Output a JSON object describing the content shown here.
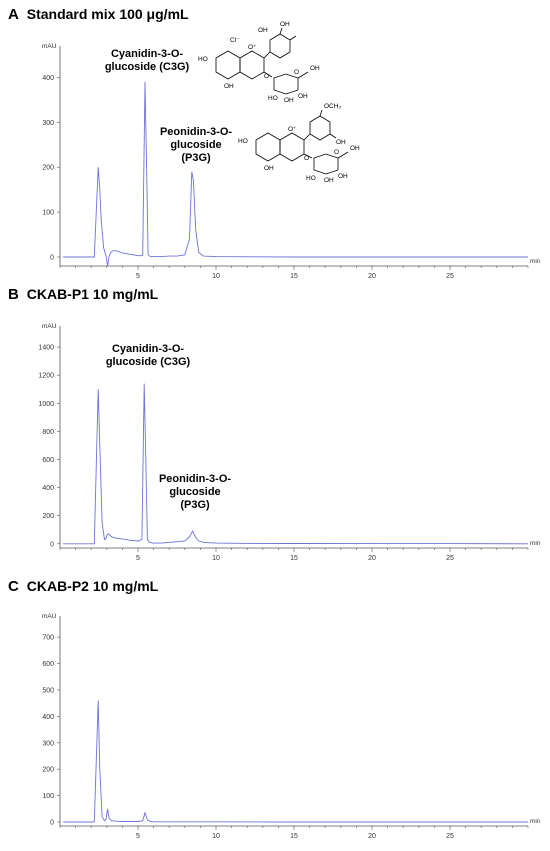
{
  "panels": [
    {
      "letter": "A",
      "title": "Standard mix 100 μg/mL",
      "y_unit": "mAU",
      "x_unit": "min",
      "annotations": [
        {
          "text": "Cyanidin-3-O-\nglucoside (C3G)"
        },
        {
          "text": "Peonidin-3-O-\nglucoside\n(P3G)"
        }
      ],
      "structure_labels": {
        "c3g": [
          "Cl⁻",
          "HO",
          "O⁺",
          "OH",
          "OH",
          "OH",
          "O",
          "O",
          "OH",
          "HO",
          "OH",
          "OH"
        ],
        "p3g": [
          "OCH₃",
          "HO",
          "O⁺",
          "OH",
          "OH",
          "O",
          "O",
          "OH",
          "HO",
          "OH",
          "OH"
        ]
      }
    },
    {
      "letter": "B",
      "title": "CKAB-P1 10 mg/mL",
      "y_unit": "mAU",
      "x_unit": "min",
      "annotations": [
        {
          "text": "Cyanidin-3-O-\nglucoside (C3G)"
        },
        {
          "text": "Peonidin-3-O-\nglucoside\n(P3G)"
        }
      ]
    },
    {
      "letter": "C",
      "title": "CKAB-P2 10 mg/mL",
      "y_unit": "mAU",
      "x_unit": "min",
      "annotations": []
    }
  ],
  "chart_data": [
    {
      "type": "line",
      "title": "Standard mix 100 μg/mL",
      "xlabel": "min",
      "ylabel": "mAU",
      "xlim": [
        0,
        30
      ],
      "ylim": [
        -20,
        470
      ],
      "xticks": [
        5,
        10,
        15,
        20,
        25
      ],
      "yticks": [
        0,
        100,
        200,
        300,
        400
      ],
      "grid": false,
      "series": [
        {
          "x": [
            0.2,
            1.5,
            2.2,
            2.45,
            2.55,
            2.65,
            2.8,
            2.95,
            3.05,
            3.15,
            3.25,
            3.4,
            3.6,
            4.0,
            4.5,
            5.0,
            5.3,
            5.45,
            5.55,
            5.65,
            5.8,
            6.0,
            6.5,
            7.0,
            7.5,
            8.0,
            8.3,
            8.45,
            8.55,
            8.7,
            8.9,
            9.2,
            10.0,
            15.0,
            20.0,
            25.0,
            30.0
          ],
          "y": [
            0,
            0,
            0,
            200,
            150,
            80,
            20,
            2,
            -20,
            2,
            10,
            14,
            14,
            9,
            6,
            3,
            3,
            390,
            200,
            5,
            1,
            1,
            1,
            2,
            2,
            5,
            40,
            190,
            170,
            60,
            10,
            2,
            1,
            0,
            0,
            0,
            0
          ]
        }
      ],
      "annotations": [
        {
          "label": "Cyanidin-3-O-glucoside (C3G)",
          "x": 5.5,
          "y": 390
        },
        {
          "label": "Peonidin-3-O-glucoside (P3G)",
          "x": 8.5,
          "y": 190
        }
      ]
    },
    {
      "type": "line",
      "title": "CKAB-P1 10 mg/mL",
      "xlabel": "min",
      "ylabel": "mAU",
      "xlim": [
        0,
        30
      ],
      "ylim": [
        -30,
        1550
      ],
      "xticks": [
        5,
        10,
        15,
        20,
        25
      ],
      "yticks": [
        0,
        200,
        400,
        600,
        800,
        1000,
        1200,
        1400
      ],
      "grid": false,
      "series": [
        {
          "x": [
            0.2,
            1.5,
            2.2,
            2.45,
            2.55,
            2.7,
            2.85,
            2.95,
            3.0,
            3.1,
            3.3,
            3.6,
            4.0,
            4.5,
            5.0,
            5.25,
            5.4,
            5.5,
            5.6,
            5.75,
            6.0,
            6.5,
            7.0,
            7.5,
            8.0,
            8.3,
            8.5,
            8.7,
            8.9,
            9.2,
            10.0,
            12.0,
            15.0,
            20.0,
            25.0,
            30.0
          ],
          "y": [
            0,
            0,
            0,
            1100,
            700,
            150,
            30,
            40,
            60,
            70,
            50,
            40,
            35,
            25,
            20,
            30,
            1140,
            600,
            30,
            10,
            5,
            5,
            10,
            15,
            20,
            50,
            90,
            45,
            20,
            10,
            5,
            3,
            2,
            1,
            1,
            0
          ]
        }
      ],
      "annotations": [
        {
          "label": "Cyanidin-3-O-glucoside (C3G)",
          "x": 5.4,
          "y": 1140
        },
        {
          "label": "Peonidin-3-O-glucoside (P3G)",
          "x": 8.5,
          "y": 90
        }
      ]
    },
    {
      "type": "line",
      "title": "CKAB-P2 10 mg/mL",
      "xlabel": "min",
      "ylabel": "mAU",
      "xlim": [
        0,
        30
      ],
      "ylim": [
        -15,
        780
      ],
      "xticks": [
        5,
        10,
        15,
        20,
        25
      ],
      "yticks": [
        0,
        100,
        200,
        300,
        400,
        500,
        600,
        700
      ],
      "grid": false,
      "series": [
        {
          "x": [
            0.2,
            1.5,
            2.2,
            2.45,
            2.55,
            2.7,
            2.85,
            2.95,
            3.05,
            3.15,
            3.3,
            3.6,
            4.0,
            5.0,
            5.3,
            5.45,
            5.6,
            5.8,
            6.0,
            8.0,
            10.0,
            15.0,
            20.0,
            25.0,
            30.0
          ],
          "y": [
            0,
            0,
            0,
            460,
            200,
            20,
            5,
            10,
            50,
            15,
            5,
            3,
            2,
            2,
            5,
            35,
            8,
            2,
            1,
            1,
            1,
            0,
            0,
            0,
            0
          ]
        }
      ],
      "annotations": []
    }
  ],
  "colors": {
    "trace": "#6f72d6",
    "axis": "#555555"
  }
}
